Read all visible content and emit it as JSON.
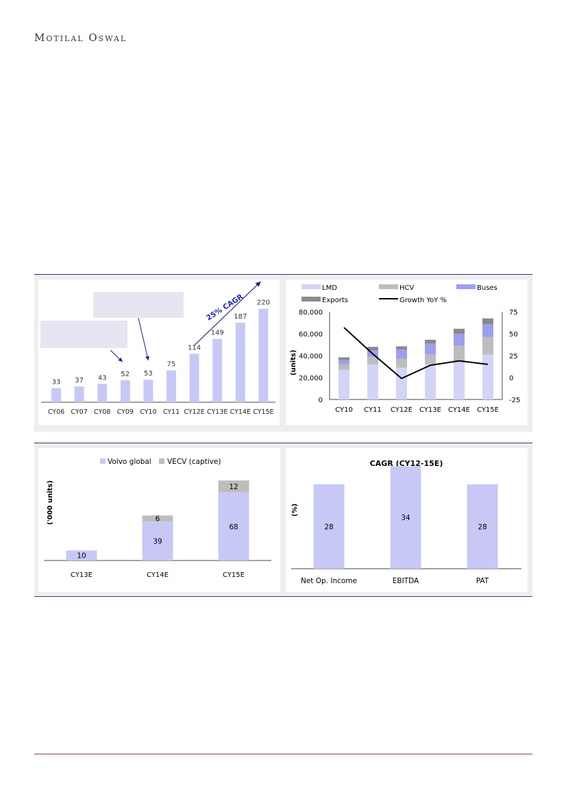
{
  "header": {
    "brand": "Motilal Oswal"
  },
  "colors": {
    "bar": "#c8c8f7",
    "lmd": "#d4d4f8",
    "hcv": "#bdbdbd",
    "buses": "#9e9ef0",
    "exports": "#8a8a8a",
    "line": "#000000",
    "arrow": "#1f1f7a"
  },
  "chart_data": [
    {
      "type": "bar",
      "categories": [
        "CY06",
        "CY07",
        "CY08",
        "CY09",
        "CY10",
        "CY11",
        "CY12E",
        "CY13E",
        "CY14E",
        "CY15E"
      ],
      "values": [
        33,
        37,
        43,
        52,
        53,
        75,
        114,
        149,
        187,
        220
      ],
      "annotation": "25% CAGR"
    },
    {
      "type": "bar",
      "stacked": true,
      "categories": [
        "CY10",
        "CY11",
        "CY12E",
        "CY13E",
        "CY14E",
        "CY15E"
      ],
      "series": [
        {
          "name": "LMD",
          "values": [
            27000,
            32000,
            29000,
            32000,
            34000,
            41000
          ]
        },
        {
          "name": "HCV",
          "values": [
            5000,
            7000,
            8000,
            9000,
            15000,
            16000
          ]
        },
        {
          "name": "Buses",
          "values": [
            4000,
            6000,
            8500,
            10000,
            11000,
            11500
          ]
        },
        {
          "name": "Exports",
          "values": [
            2500,
            3000,
            3000,
            3500,
            4500,
            5500
          ]
        }
      ],
      "line_series": {
        "name": "Growth YoY %",
        "values": [
          57,
          27,
          -1,
          14,
          19,
          15
        ]
      },
      "ylabel": "(units)",
      "ylim": [
        0,
        80000
      ],
      "y_ticks": [
        "0",
        "20,000",
        "40,000",
        "60,000",
        "80,000"
      ],
      "y2lim": [
        -25,
        75
      ],
      "y2_ticks": [
        "-25",
        "0",
        "25",
        "50",
        "75"
      ],
      "legend": [
        "LMD",
        "HCV",
        "Buses",
        "Exports",
        "Growth YoY %"
      ]
    },
    {
      "type": "bar",
      "stacked": true,
      "categories": [
        "CY13E",
        "CY14E",
        "CY15E"
      ],
      "series": [
        {
          "name": "Volvo global",
          "values": [
            10,
            39,
            68
          ]
        },
        {
          "name": "VECV (captive)",
          "values": [
            0,
            6,
            12
          ]
        }
      ],
      "ylabel": "('000 units)",
      "legend": [
        "Volvo global",
        "VECV (captive)"
      ]
    },
    {
      "type": "bar",
      "title": "CAGR (CY12-15E)",
      "categories": [
        "Net Op. Income",
        "EBITDA",
        "PAT"
      ],
      "values": [
        28,
        34,
        28
      ],
      "ylabel": "(%)"
    }
  ]
}
